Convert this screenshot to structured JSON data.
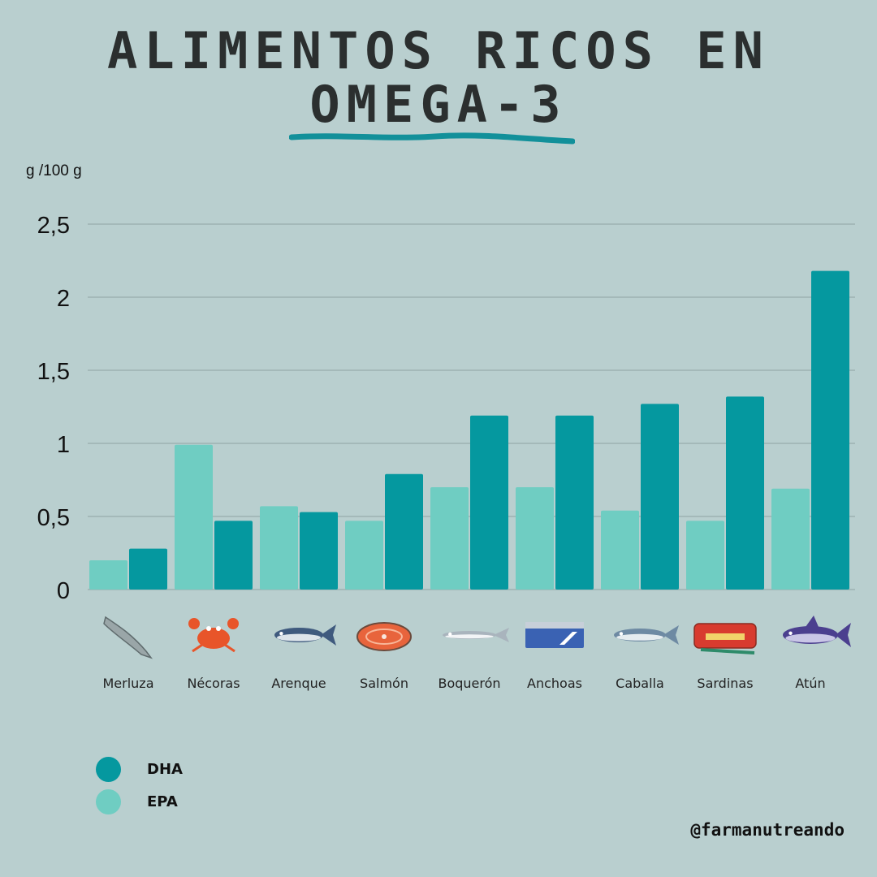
{
  "title_line1": "ALIMENTOS RICOS EN",
  "title_line2": "OMEGA-3",
  "unit_label": "g /100 g",
  "handle": "@farmanutreando",
  "colors": {
    "dha": "#05989f",
    "epa": "#6fcdc2",
    "background": "#b9cfcf",
    "underline": "#12909a"
  },
  "legend": [
    {
      "label": "DHA",
      "color": "#05989f"
    },
    {
      "label": "EPA",
      "color": "#6fcdc2"
    }
  ],
  "chart_data": {
    "type": "bar",
    "title": "ALIMENTOS RICOS EN OMEGA-3",
    "ylabel": "g /100 g",
    "ylim": [
      0,
      2.5
    ],
    "yticks": [
      {
        "value": 0,
        "label": "0"
      },
      {
        "value": 0.5,
        "label": "0,5"
      },
      {
        "value": 1,
        "label": "1"
      },
      {
        "value": 1.5,
        "label": "1,5"
      },
      {
        "value": 2,
        "label": "2"
      },
      {
        "value": 2.5,
        "label": "2,5"
      }
    ],
    "grid": true,
    "legend_position": "bottom-left",
    "categories": [
      "Merluza",
      "Nécoras",
      "Arenque",
      "Salmón",
      "Boquerón",
      "Anchoas",
      "Caballa",
      "Sardinas",
      "Atún"
    ],
    "icons": [
      "hake-icon",
      "crab-icon",
      "herring-icon",
      "salmon-steak-icon",
      "anchovy-icon",
      "anchovy-tin-icon",
      "mackerel-icon",
      "sardine-can-icon",
      "tuna-icon"
    ],
    "series": [
      {
        "name": "EPA",
        "values": [
          0.2,
          0.99,
          0.57,
          0.47,
          0.7,
          0.7,
          0.54,
          0.47,
          0.69
        ]
      },
      {
        "name": "DHA",
        "values": [
          0.28,
          0.47,
          0.53,
          0.79,
          1.19,
          1.19,
          1.27,
          1.32,
          2.18
        ]
      }
    ]
  }
}
